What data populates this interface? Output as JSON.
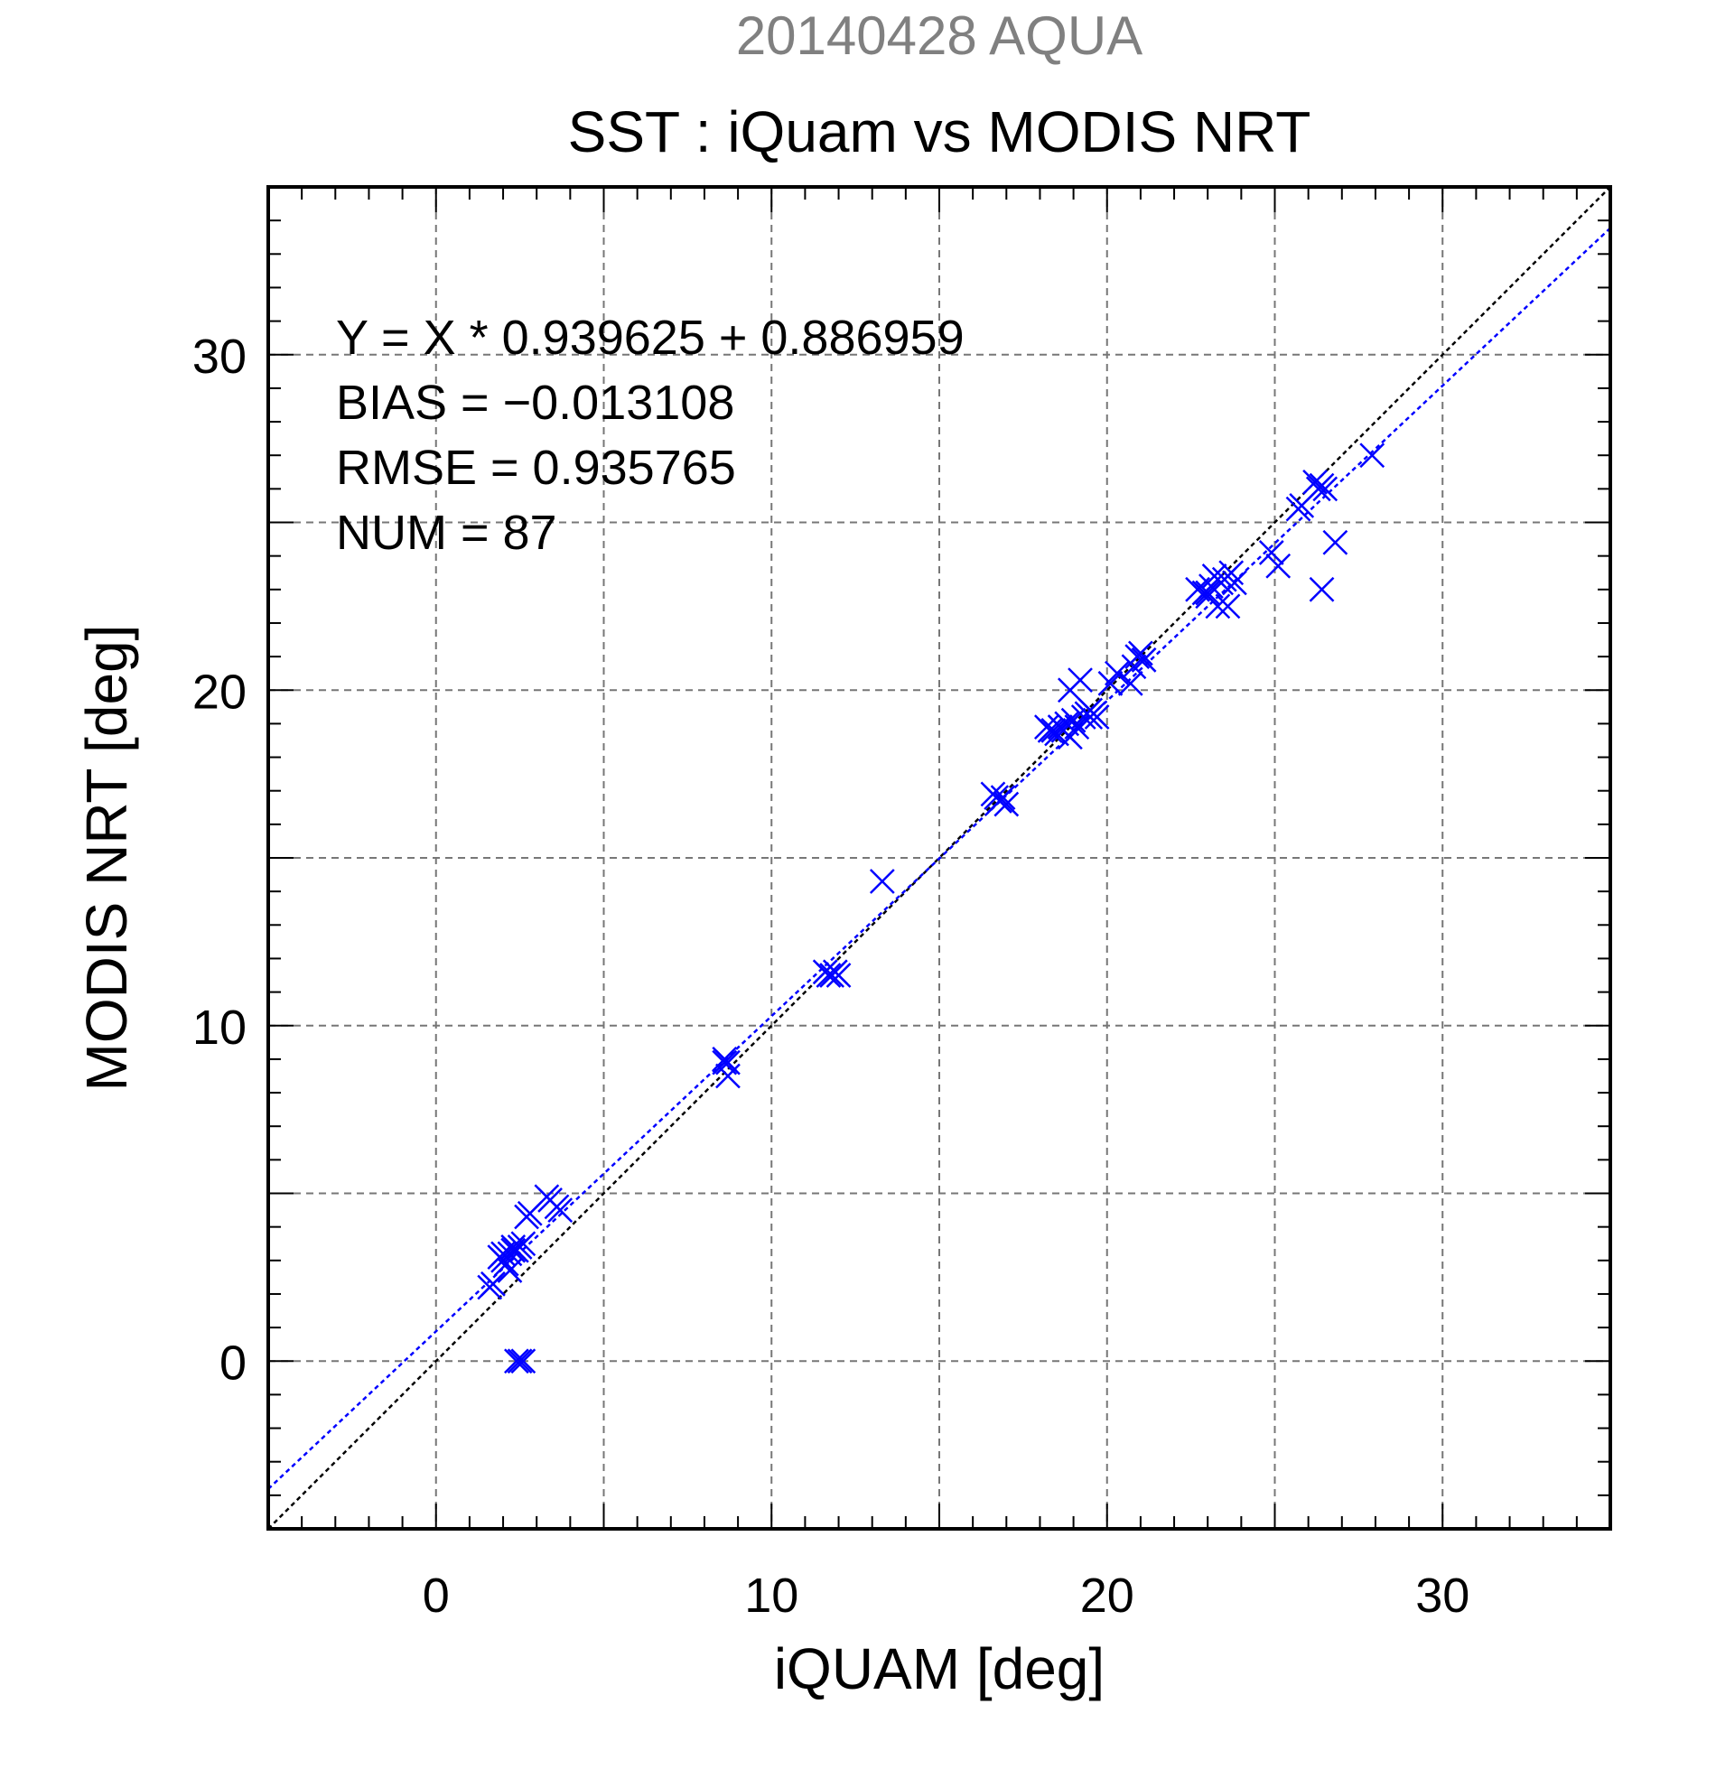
{
  "chart_data": {
    "type": "scatter",
    "supertitle": "20140428 AQUA",
    "title": "SST : iQuam vs MODIS NRT",
    "xlabel": "iQUAM [deg]",
    "ylabel": "MODIS NRT [deg]",
    "xlim": [
      -5,
      35
    ],
    "ylim": [
      -5,
      35
    ],
    "xticks": [
      0,
      10,
      20,
      30
    ],
    "yticks": [
      0,
      10,
      20,
      30
    ],
    "grid": true,
    "annotations": [
      "Y = X * 0.939625 + 0.886959",
      "BIAS = −0.013108",
      "RMSE = 0.935765",
      "NUM = 87"
    ],
    "fit_line": {
      "slope": 0.939625,
      "intercept": 0.886959,
      "color": "#0000ff"
    },
    "identity_line": {
      "slope": 1,
      "intercept": 0,
      "color": "#000000"
    },
    "marker_color": "#0000ff",
    "series": [
      {
        "points": [
          [
            1.6,
            2.2
          ],
          [
            1.7,
            2.3
          ],
          [
            1.9,
            3.1
          ],
          [
            2.0,
            3.2
          ],
          [
            2.1,
            2.9
          ],
          [
            2.2,
            2.7
          ],
          [
            2.2,
            3.2
          ],
          [
            2.3,
            3.4
          ],
          [
            2.4,
            3.3
          ],
          [
            2.5,
            3.4
          ],
          [
            2.6,
            3.5
          ],
          [
            2.7,
            4.3
          ],
          [
            2.8,
            4.4
          ],
          [
            3.3,
            4.9
          ],
          [
            3.4,
            4.8
          ],
          [
            3.6,
            4.6
          ],
          [
            3.7,
            4.5
          ],
          [
            2.4,
            0.0
          ],
          [
            2.5,
            0.0
          ],
          [
            2.6,
            0.0
          ],
          [
            8.6,
            9.0
          ],
          [
            8.7,
            8.9
          ],
          [
            8.7,
            8.5
          ],
          [
            11.6,
            11.6
          ],
          [
            11.8,
            11.5
          ],
          [
            11.9,
            11.6
          ],
          [
            12.0,
            11.5
          ],
          [
            13.3,
            14.3
          ],
          [
            16.6,
            16.9
          ],
          [
            16.7,
            16.8
          ],
          [
            16.8,
            16.7
          ],
          [
            16.9,
            16.8
          ],
          [
            17.0,
            16.6
          ],
          [
            18.2,
            18.9
          ],
          [
            18.3,
            18.8
          ],
          [
            18.4,
            18.8
          ],
          [
            18.5,
            18.7
          ],
          [
            18.6,
            18.9
          ],
          [
            18.7,
            18.8
          ],
          [
            18.8,
            19.0
          ],
          [
            18.9,
            18.6
          ],
          [
            18.9,
            20.0
          ],
          [
            19.0,
            19.1
          ],
          [
            19.1,
            18.9
          ],
          [
            19.2,
            20.3
          ],
          [
            19.3,
            19.2
          ],
          [
            19.4,
            19.3
          ],
          [
            19.5,
            19.4
          ],
          [
            19.6,
            19.3
          ],
          [
            19.7,
            19.2
          ],
          [
            20.1,
            20.2
          ],
          [
            20.3,
            20.5
          ],
          [
            20.7,
            20.2
          ],
          [
            20.8,
            20.7
          ],
          [
            20.9,
            21.0
          ],
          [
            21.0,
            21.1
          ],
          [
            21.1,
            20.9
          ],
          [
            22.7,
            23.0
          ],
          [
            22.9,
            22.9
          ],
          [
            23.0,
            22.8
          ],
          [
            23.1,
            23.1
          ],
          [
            23.2,
            23.4
          ],
          [
            23.3,
            22.5
          ],
          [
            23.4,
            23.2
          ],
          [
            23.5,
            23.3
          ],
          [
            23.6,
            22.5
          ],
          [
            23.7,
            23.5
          ],
          [
            23.8,
            23.2
          ],
          [
            24.9,
            24.1
          ],
          [
            25.1,
            23.7
          ],
          [
            25.7,
            25.4
          ],
          [
            25.8,
            25.5
          ],
          [
            26.2,
            26.2
          ],
          [
            26.3,
            26.0
          ],
          [
            26.4,
            26.1
          ],
          [
            26.5,
            26.0
          ],
          [
            26.4,
            23.0
          ],
          [
            26.8,
            24.4
          ],
          [
            27.9,
            27.0
          ],
          [
            23.0,
            22.9
          ],
          [
            19.5,
            19.2
          ],
          [
            18.6,
            18.9
          ],
          [
            16.8,
            16.7
          ],
          [
            2.3,
            3.3
          ],
          [
            2.0,
            3.0
          ],
          [
            11.7,
            11.5
          ],
          [
            8.6,
            8.9
          ]
        ]
      }
    ]
  }
}
